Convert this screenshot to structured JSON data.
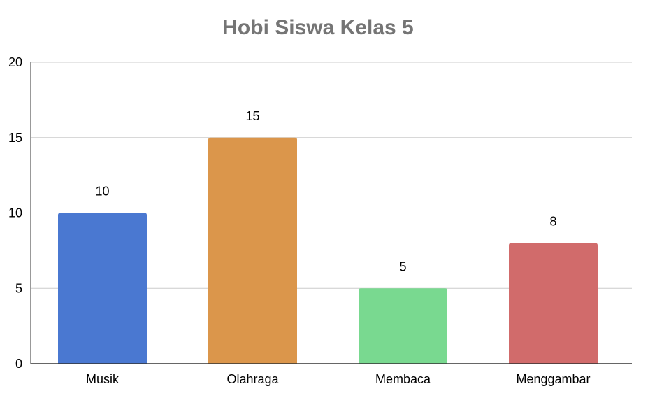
{
  "chart_data": {
    "type": "bar",
    "title": "Hobi Siswa Kelas 5",
    "xlabel": "",
    "ylabel": "",
    "categories": [
      "Musik",
      "Olahraga",
      "Membaca",
      "Menggambar"
    ],
    "values": [
      10,
      15,
      5,
      8
    ],
    "colors": [
      "#4a78d1",
      "#db964b",
      "#79d990",
      "#d16b6b"
    ],
    "ylim": [
      0,
      20
    ],
    "yticks": [
      0,
      5,
      10,
      15,
      20
    ],
    "grid": true,
    "legend": "none",
    "data_labels": true
  }
}
